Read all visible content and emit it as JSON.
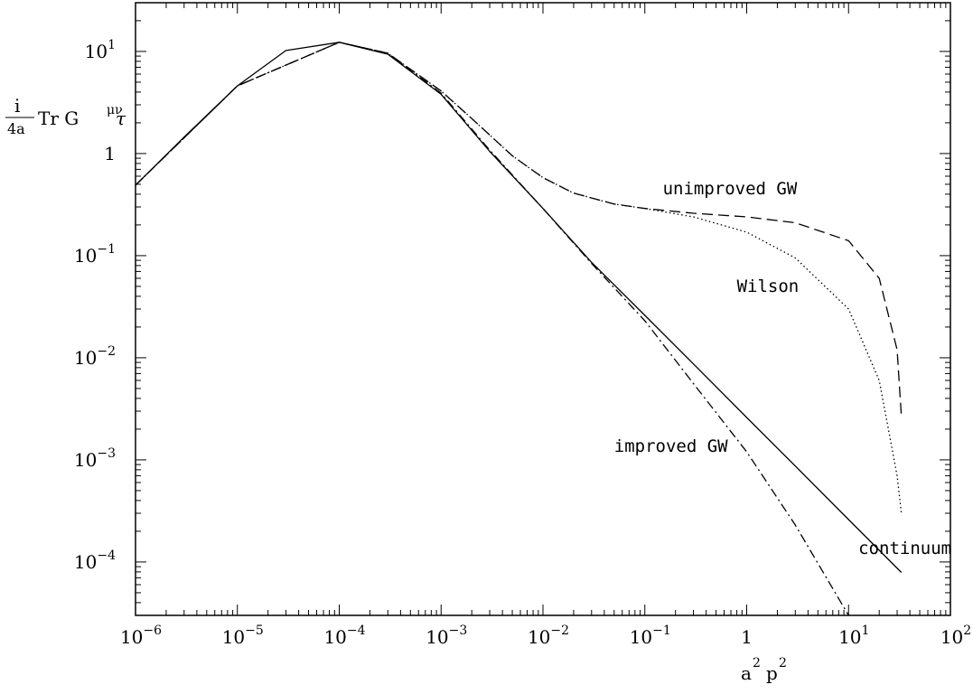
{
  "chart_data": {
    "type": "line",
    "title": "",
    "x_scale": "log",
    "y_scale": "log",
    "xlim": [
      1e-06,
      100
    ],
    "ylim": [
      3e-05,
      30
    ],
    "grid": false,
    "legend": "none (series labelled inline)",
    "xlabel": {
      "base1": "a",
      "exp1": "2",
      "base2": "p",
      "exp2": "2"
    },
    "ylabel": {
      "frac_num": "i",
      "frac_den": "4a",
      "text": "Tr G",
      "sup": "μν",
      "tail": "τ"
    },
    "x_ticks": [
      {
        "value": 1e-06,
        "base": "10",
        "exp": "−6"
      },
      {
        "value": 1e-05,
        "base": "10",
        "exp": "−5"
      },
      {
        "value": 0.0001,
        "base": "10",
        "exp": "−4"
      },
      {
        "value": 0.001,
        "base": "10",
        "exp": "−3"
      },
      {
        "value": 0.01,
        "base": "10",
        "exp": "−2"
      },
      {
        "value": 0.1,
        "base": "10",
        "exp": "−1"
      },
      {
        "value": 1,
        "base": "1",
        "exp": ""
      },
      {
        "value": 10,
        "base": "10",
        "exp": "1"
      },
      {
        "value": 100,
        "base": "10",
        "exp": "2"
      }
    ],
    "y_ticks": [
      {
        "value": 10,
        "base": "10",
        "exp": "1"
      },
      {
        "value": 1,
        "base": "1",
        "exp": ""
      },
      {
        "value": 0.1,
        "base": "10",
        "exp": "−1"
      },
      {
        "value": 0.01,
        "base": "10",
        "exp": "−2"
      },
      {
        "value": 0.001,
        "base": "10",
        "exp": "−3"
      },
      {
        "value": 0.0001,
        "base": "10",
        "exp": "−4"
      }
    ],
    "series": [
      {
        "name": "continuum",
        "style": "solid",
        "x": [
          1e-06,
          3e-06,
          1e-05,
          3e-05,
          0.0001,
          0.0003,
          0.001,
          0.003,
          0.01,
          0.03,
          0.1,
          0.3,
          1,
          3,
          10,
          33
        ],
        "y": [
          0.49,
          1.45,
          4.6,
          10.2,
          12.3,
          9.4,
          3.8,
          1.05,
          0.29,
          0.086,
          0.026,
          0.0087,
          0.0026,
          0.00087,
          0.00026,
          7.9e-05
        ]
      },
      {
        "name": "unimproved GW",
        "style": "dashed",
        "x": [
          1e-06,
          1e-05,
          0.0001,
          0.0003,
          0.001,
          0.002,
          0.005,
          0.01,
          0.02,
          0.05,
          0.1,
          0.3,
          1,
          3,
          10,
          20,
          30,
          33
        ],
        "y": [
          0.49,
          4.6,
          12.3,
          9.6,
          4.1,
          2.2,
          0.95,
          0.58,
          0.41,
          0.32,
          0.29,
          0.26,
          0.24,
          0.21,
          0.14,
          0.06,
          0.012,
          0.0027
        ]
      },
      {
        "name": "Wilson",
        "style": "dotted",
        "x": [
          1e-06,
          1e-05,
          0.0001,
          0.0003,
          0.001,
          0.002,
          0.005,
          0.01,
          0.02,
          0.05,
          0.1,
          0.3,
          1,
          3,
          10,
          20,
          30,
          33
        ],
        "y": [
          0.49,
          4.6,
          12.3,
          9.6,
          4.1,
          2.2,
          0.95,
          0.58,
          0.41,
          0.32,
          0.29,
          0.24,
          0.17,
          0.095,
          0.03,
          0.006,
          0.0007,
          0.0003
        ]
      },
      {
        "name": "improved GW",
        "style": "dashdot",
        "x": [
          1e-06,
          1e-05,
          0.0001,
          0.0003,
          0.001,
          0.003,
          0.01,
          0.03,
          0.1,
          0.3,
          1,
          3,
          10
        ],
        "y": [
          0.49,
          4.6,
          12.3,
          9.6,
          3.9,
          1.08,
          0.29,
          0.084,
          0.023,
          0.0056,
          0.0012,
          0.00023,
          3e-05
        ]
      }
    ],
    "annotations": [
      {
        "text": "unimproved GW",
        "x": 0.15,
        "y": 0.4
      },
      {
        "text": "Wilson",
        "x": 0.8,
        "y": 0.044
      },
      {
        "text": "improved GW",
        "x": 0.05,
        "y": 0.0012
      },
      {
        "text": "continuum",
        "x": 12.5,
        "y": 0.00012
      }
    ]
  }
}
